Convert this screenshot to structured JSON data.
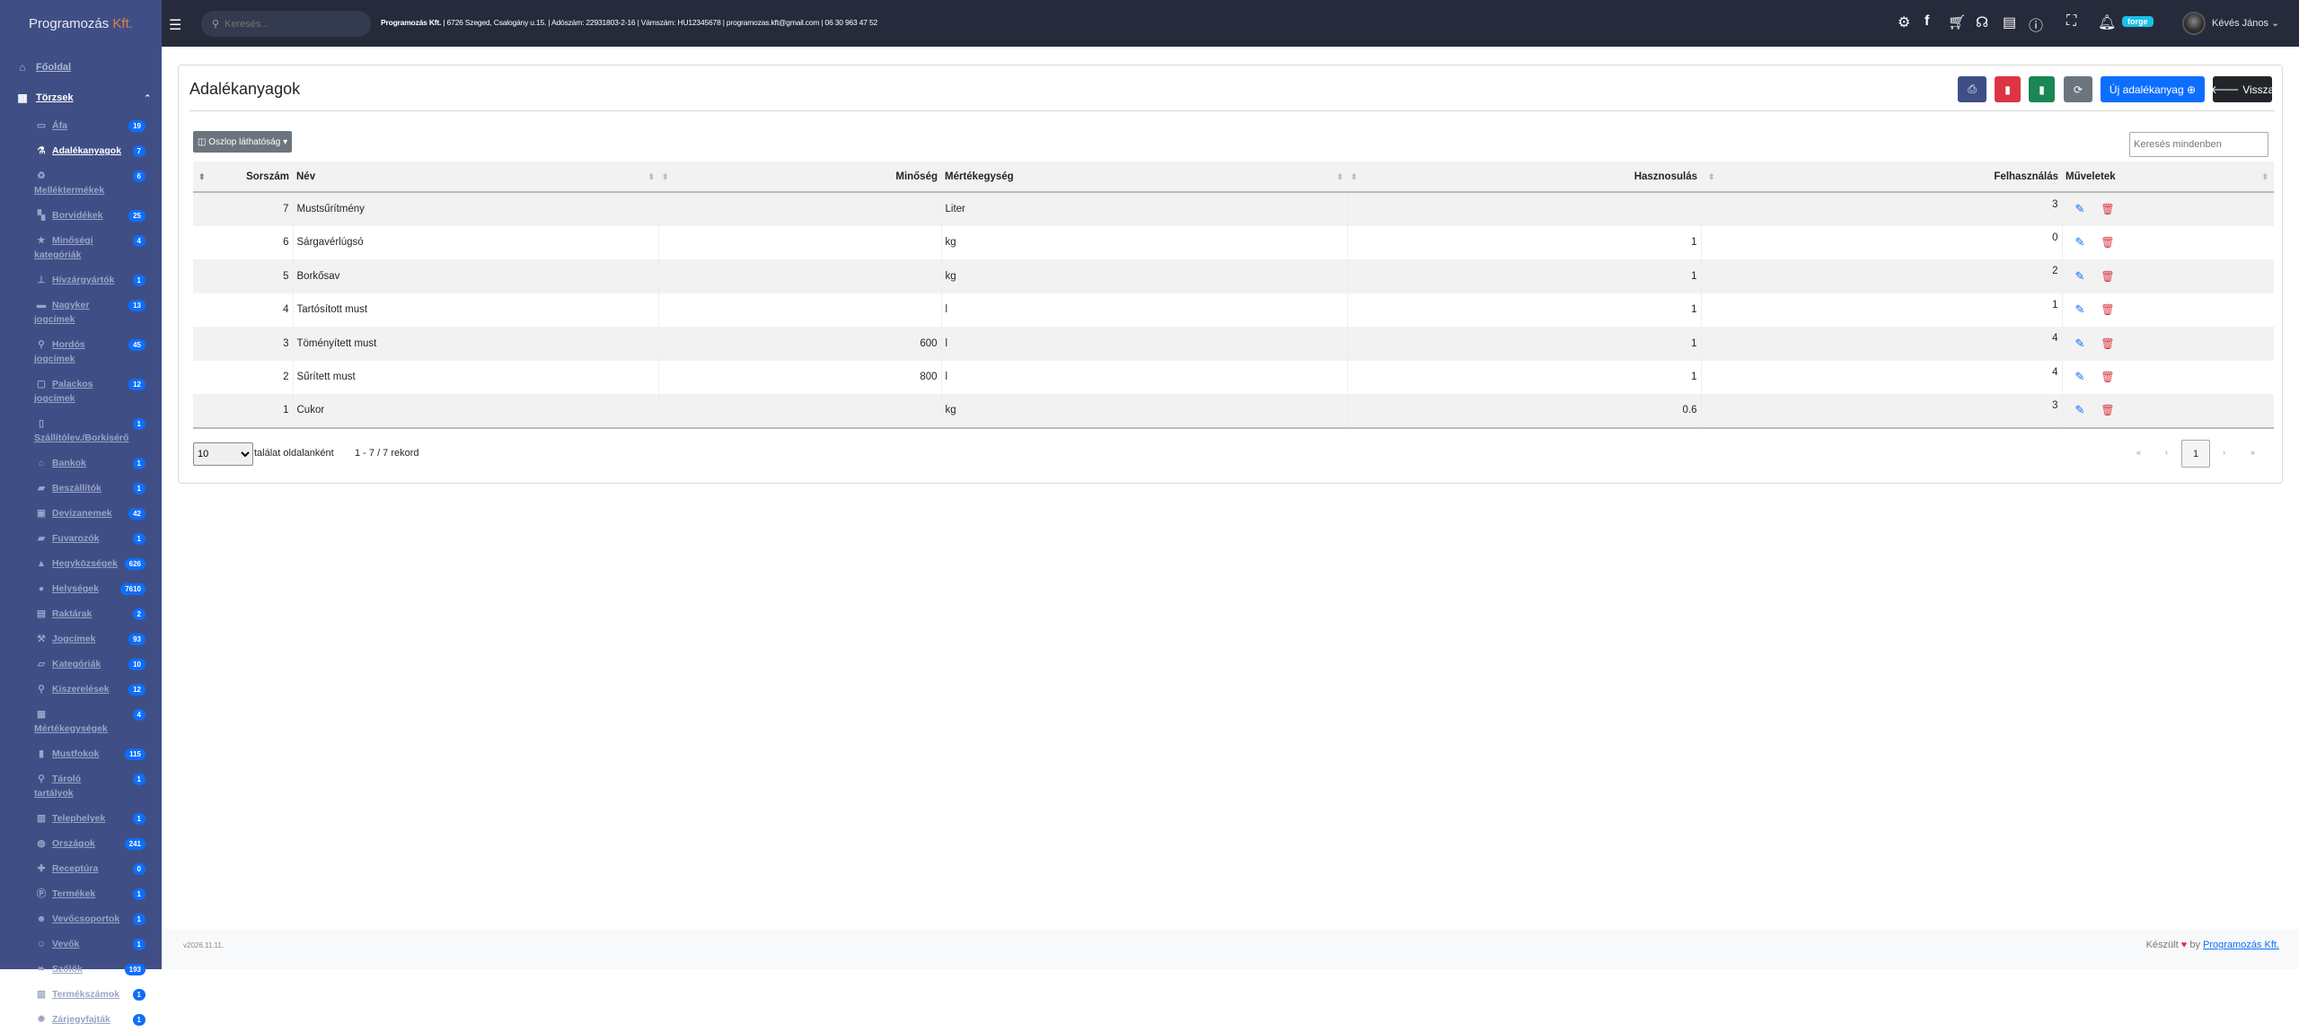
{
  "brand": {
    "name": "Programozás",
    "suffix": "Kft."
  },
  "nav": {
    "home": "Főoldal",
    "group": "Törzsek",
    "items": [
      {
        "label": "Áfa",
        "badge": "19",
        "icon": "wallet-icon"
      },
      {
        "label": "Adalékanyagok",
        "badge": "7",
        "icon": "flask-icon",
        "active": true
      },
      {
        "label": "Melléktermékek",
        "badge": "6",
        "icon": "recycle-icon"
      },
      {
        "label": "Borvidékek",
        "badge": "25",
        "icon": "map-icon"
      },
      {
        "label": "Minőségi kategóriák",
        "badge": "4",
        "icon": "star-icon"
      },
      {
        "label": "Hívzárgyártók",
        "badge": "1",
        "icon": "stamp-icon"
      },
      {
        "label": "Nagyker jogcímek",
        "badge": "13",
        "icon": "briefcase-icon"
      },
      {
        "label": "Hordós jogcímek",
        "badge": "45",
        "icon": "bottle-icon"
      },
      {
        "label": "Palackos jogcímek",
        "badge": "12",
        "icon": "box-icon"
      },
      {
        "label": "Szállítólev./Borkísérő",
        "badge": "1",
        "icon": "file-icon"
      },
      {
        "label": "Bankok",
        "badge": "1",
        "icon": "bank-icon"
      },
      {
        "label": "Beszállítók",
        "badge": "1",
        "icon": "truck-icon"
      },
      {
        "label": "Devizanemek",
        "badge": "42",
        "icon": "money-icon"
      },
      {
        "label": "Fuvarozók",
        "badge": "1",
        "icon": "truck-icon"
      },
      {
        "label": "Hegyközségek",
        "badge": "626",
        "icon": "mountain-icon"
      },
      {
        "label": "Helységek",
        "badge": "7610",
        "icon": "location-pin-icon"
      },
      {
        "label": "Raktárak",
        "badge": "2",
        "icon": "warehouse-icon"
      },
      {
        "label": "Jogcímek",
        "badge": "93",
        "icon": "gavel-icon"
      },
      {
        "label": "Kategóriák",
        "badge": "10",
        "icon": "folder-icon"
      },
      {
        "label": "Kiszerelések",
        "badge": "12",
        "icon": "bottle-icon"
      },
      {
        "label": "Mértékegységek",
        "badge": "4",
        "icon": "grid-icon"
      },
      {
        "label": "Mustfokok",
        "badge": "115",
        "icon": "thermometer-icon"
      },
      {
        "label": "Tároló tartályok",
        "badge": "1",
        "icon": "bottle-icon"
      },
      {
        "label": "Telephelyek",
        "badge": "1",
        "icon": "building-icon"
      },
      {
        "label": "Országok",
        "badge": "241",
        "icon": "globe-icon"
      },
      {
        "label": "Receptúra",
        "badge": "0",
        "icon": "puzzle-icon"
      },
      {
        "label": "Termékek",
        "badge": "1",
        "icon": "product-icon"
      },
      {
        "label": "Vevőcsoportok",
        "badge": "1",
        "icon": "users-icon"
      },
      {
        "label": "Vevők",
        "badge": "1",
        "icon": "user-group-icon"
      },
      {
        "label": "Szőlők",
        "badge": "193",
        "icon": "leaf-icon"
      },
      {
        "label": "Termékszámok",
        "badge": "1",
        "icon": "barcode-icon"
      },
      {
        "label": "Zárjegyfajták",
        "badge": "1",
        "icon": "certificate-icon"
      }
    ]
  },
  "topbar": {
    "search_placeholder": "Keresés...",
    "company": "Programozás Kft.",
    "info": "| 6726 Szeged, Csalogány u.15. | Adószám: 22931803-2-16 | Vámszám: HU12345678 | programozas.kft@gmail.com | 06 30 963 47 52",
    "badge": "forge",
    "user": "Kévés János"
  },
  "page": {
    "title": "Adalékanyagok",
    "new_label": "Új adalékanyag",
    "back_label": "Vissza",
    "col_visibility": "Oszlop láthatóság",
    "search_placeholder": "Keresés mindenben"
  },
  "table": {
    "columns": [
      "Sorszám",
      "Név",
      "Minőség",
      "Mértékegység",
      "Hasznosulás",
      "Felhasználás",
      "Műveletek"
    ],
    "rows": [
      [
        "7",
        "Mustsűrítmény",
        "",
        "Liter",
        "",
        "3"
      ],
      [
        "6",
        "Sárgavérlúgsó",
        "",
        "kg",
        "1",
        "0"
      ],
      [
        "5",
        "Borkősav",
        "",
        "kg",
        "1",
        "2"
      ],
      [
        "4",
        "Tartósított must",
        "",
        "l",
        "1",
        "1"
      ],
      [
        "3",
        "Töményített must",
        "600",
        "l",
        "1",
        "4"
      ],
      [
        "2",
        "Sűrített must",
        "800",
        "l",
        "1",
        "4"
      ],
      [
        "1",
        "Cukor",
        "",
        "kg",
        "0.6",
        "3"
      ]
    ]
  },
  "pagination": {
    "per_page": "10",
    "per_page_label": "találat oldalanként",
    "records": "1 - 7 / 7 rekord",
    "first": "«",
    "prev": "‹",
    "current": "1",
    "next": "›",
    "last": "»"
  },
  "footer": {
    "version": "v2026.11.11.",
    "made": "Készült",
    "by": "by",
    "link": "Programozás Kft."
  },
  "colors": {
    "sidebar": "#3f4f86",
    "topbar": "#262b3c",
    "badge": "#0d6efd",
    "print": "#3f4f86",
    "pdf": "#dc3545",
    "excel": "#198754",
    "refresh": "#6c757d",
    "new": "#0d6efd",
    "back": "#212529"
  }
}
